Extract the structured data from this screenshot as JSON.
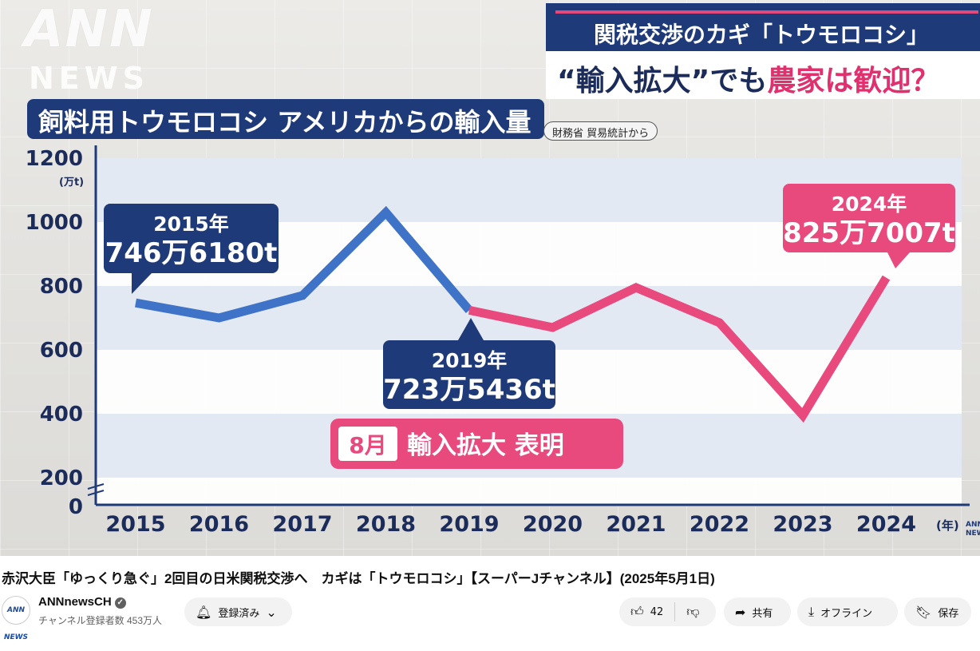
{
  "overlay": {
    "logo_ann": "ANN",
    "logo_news": "NEWS",
    "headline_top": "関税交渉のカギ「トウモロコシ」",
    "headline_main_a": "“輸入拡大”でも",
    "headline_main_b": "農家は歓迎？",
    "corner_mark": "ANN NEWS"
  },
  "chart_data": {
    "type": "line",
    "title": "飼料用トウモロコシ アメリカからの輸入量",
    "source": "財務省 貿易統計から",
    "ylabel": "(万t)",
    "xlabel": "(年)",
    "x": [
      "2015",
      "2016",
      "2017",
      "2018",
      "2019",
      "2020",
      "2021",
      "2022",
      "2023",
      "2024"
    ],
    "yticks": [
      "1200",
      "1000",
      "800",
      "600",
      "400",
      "200",
      "0"
    ],
    "ylim": [
      0,
      1200
    ],
    "series": [
      {
        "values": [
          747,
          700,
          770,
          1030,
          724,
          null,
          null,
          null,
          null,
          null
        ],
        "color": "#3f73c7"
      },
      {
        "values": [
          null,
          null,
          null,
          null,
          724,
          670,
          795,
          685,
          395,
          826
        ],
        "color": "#e84a7e"
      }
    ],
    "annotations": [
      {
        "year": "2015年",
        "value_text": "746万6180t",
        "color": "#1f3a78"
      },
      {
        "year": "2019年",
        "value_text": "723万5436t",
        "color": "#1f3a78"
      },
      {
        "year": "2024年",
        "value_text": "825万7007t",
        "color": "#e84a7e"
      }
    ],
    "banner": {
      "month": "8月",
      "text": "輸入拡大 表明"
    },
    "grid": true
  },
  "video": {
    "title": "赤沢大臣「ゆっくり急ぐ」2回目の日米関税交渉へ　カギは「トウモロコシ」【スーパーJチャンネル】(2025年5月1日)",
    "channel": "ANNnewsCH",
    "avatar_text": "ANN NEWS",
    "subscribers": "チャンネル登録者数 453万人",
    "subscribe_label": "登録済み",
    "like_count": "42",
    "share_label": "共有",
    "offline_label": "オフライン",
    "save_label": "保存"
  }
}
